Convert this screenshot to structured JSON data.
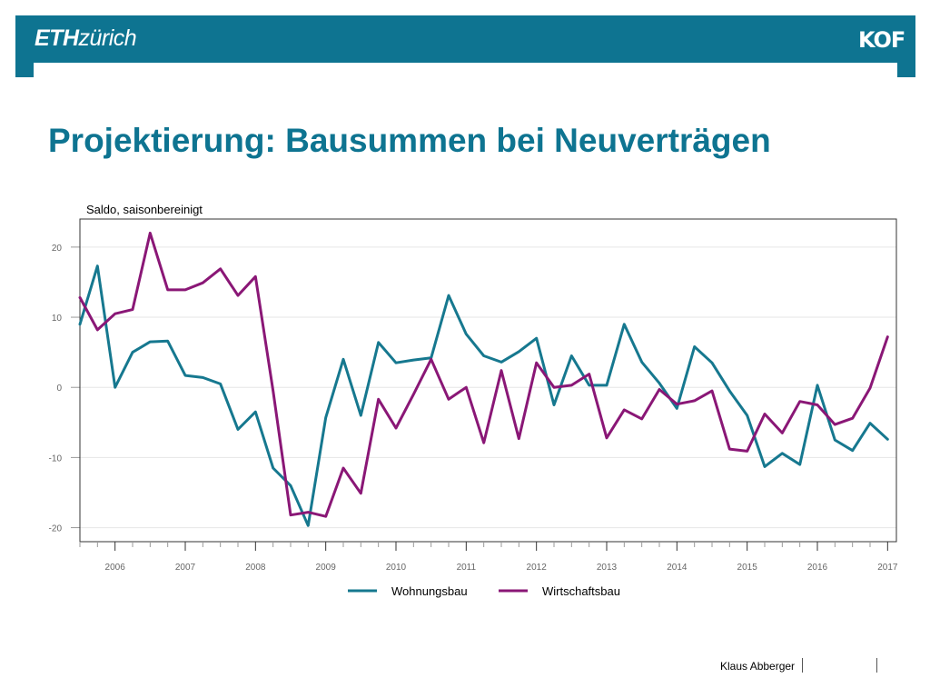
{
  "header": {
    "logo_left_bold": "ETH",
    "logo_left_light": "zürich",
    "logo_right": "KOF",
    "color": "#0e7491"
  },
  "slide_title": "Projektierung: Bausummen bei Neuverträgen",
  "footer": {
    "author": "Klaus Abberger"
  },
  "chart_data": {
    "type": "line",
    "ylabel": "Saldo, saisonbereinigt",
    "ylim": [
      -22,
      24
    ],
    "yticks": [
      20,
      10,
      0,
      -10,
      -20
    ],
    "ytick_labels": [
      "20",
      "10",
      "0",
      "-10",
      "-20"
    ],
    "xlim": [
      2005.5,
      2017.125
    ],
    "xtick_years": [
      2006,
      2007,
      2008,
      2009,
      2010,
      2011,
      2012,
      2013,
      2014,
      2015,
      2016,
      2017
    ],
    "xtick_labels": [
      "2006",
      "2007",
      "2008",
      "2009",
      "2010",
      "2011",
      "2012",
      "2013",
      "2014",
      "2015",
      "2016",
      "2017"
    ],
    "grid": "horizontal",
    "legend_position": "bottom",
    "x": [
      2005.5,
      2005.75,
      2006.0,
      2006.25,
      2006.5,
      2006.75,
      2007.0,
      2007.25,
      2007.5,
      2007.75,
      2008.0,
      2008.25,
      2008.5,
      2008.75,
      2009.0,
      2009.25,
      2009.5,
      2009.75,
      2010.0,
      2010.25,
      2010.5,
      2010.75,
      2011.0,
      2011.25,
      2011.5,
      2011.75,
      2012.0,
      2012.25,
      2012.5,
      2012.75,
      2013.0,
      2013.25,
      2013.5,
      2013.75,
      2014.0,
      2014.25,
      2014.5,
      2014.75,
      2015.0,
      2015.25,
      2015.5,
      2015.75,
      2016.0,
      2016.25,
      2016.5,
      2016.75,
      2017.0
    ],
    "series": [
      {
        "name": "Wohnungsbau",
        "color": "#16788f",
        "values": [
          9.0,
          17.3,
          0.0,
          5.0,
          6.5,
          6.6,
          1.7,
          1.4,
          0.5,
          -6.0,
          -3.5,
          -11.5,
          -14.0,
          -19.7,
          -4.3,
          4.0,
          -4.0,
          6.4,
          3.5,
          3.9,
          4.2,
          13.1,
          7.6,
          4.5,
          3.6,
          5.1,
          7.0,
          -2.5,
          4.5,
          0.3,
          0.3,
          9.0,
          3.6,
          0.6,
          -3.0,
          5.8,
          3.5,
          -0.5,
          -4.0,
          -11.3,
          -9.4,
          -11.0,
          0.3,
          -7.5,
          -9.0,
          -5.1,
          -7.4
        ]
      },
      {
        "name": "Wirtschaftsbau",
        "color": "#8a1776",
        "values": [
          12.8,
          8.2,
          10.5,
          11.1,
          22.0,
          13.9,
          13.9,
          14.9,
          16.9,
          13.1,
          15.8,
          -0.5,
          -18.2,
          -17.8,
          -18.4,
          -11.5,
          -15.1,
          -1.7,
          -5.8,
          -1.0,
          4.0,
          -1.7,
          0.0,
          -7.9,
          2.4,
          -7.3,
          3.5,
          0.0,
          0.3,
          1.9,
          -7.2,
          -3.2,
          -4.5,
          -0.3,
          -2.4,
          -1.9,
          -0.5,
          -8.8,
          -9.1,
          -3.8,
          -6.5,
          -2.0,
          -2.5,
          -5.3,
          -4.4,
          -0.1,
          7.2
        ]
      }
    ]
  }
}
